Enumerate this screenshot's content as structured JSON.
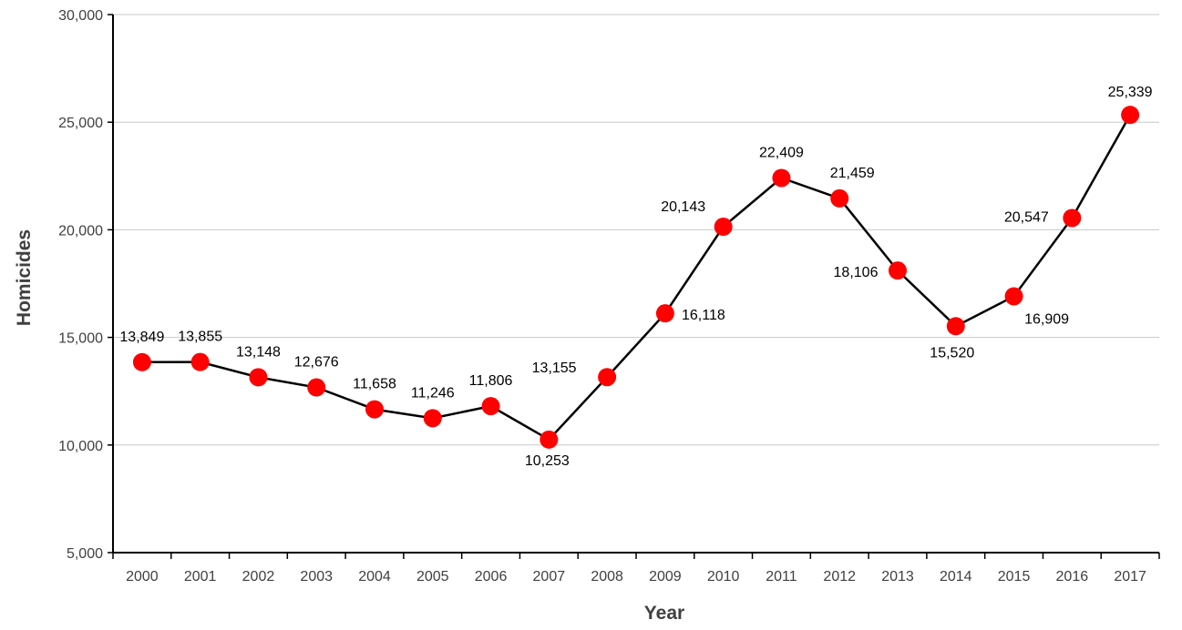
{
  "chart_data": {
    "type": "line",
    "title": "",
    "xlabel": "Year",
    "ylabel": "Homicides",
    "categories": [
      "2000",
      "2001",
      "2002",
      "2003",
      "2004",
      "2005",
      "2006",
      "2007",
      "2008",
      "2009",
      "2010",
      "2011",
      "2012",
      "2013",
      "2014",
      "2015",
      "2016",
      "2017"
    ],
    "series": [
      {
        "values": [
          13849,
          13855,
          13148,
          12676,
          11658,
          11246,
          11806,
          10253,
          13155,
          16118,
          20143,
          22409,
          21459,
          18106,
          15520,
          16909,
          20547,
          25339
        ]
      }
    ],
    "data_labels": [
      "13,849",
      "13,855",
      "13,148",
      "12,676",
      "11,658",
      "11,246",
      "11,806",
      "10,253",
      "13,155",
      "16,118",
      "20,143",
      "22,409",
      "21,459",
      "18,106",
      "15,520",
      "16,909",
      "20,547",
      "25,339"
    ],
    "ylim": [
      5000,
      30000
    ],
    "yticks": [
      5000,
      10000,
      15000,
      20000,
      25000,
      30000
    ],
    "ytick_labels": [
      "5,000",
      "10,000",
      "15,000",
      "20,000",
      "25,000",
      "30,000"
    ],
    "grid": "horizontal",
    "legend": "none",
    "colors": {
      "line": "#000000",
      "marker": "#ff0000",
      "grid": "#c8c8c8",
      "axis": "#000000"
    }
  }
}
